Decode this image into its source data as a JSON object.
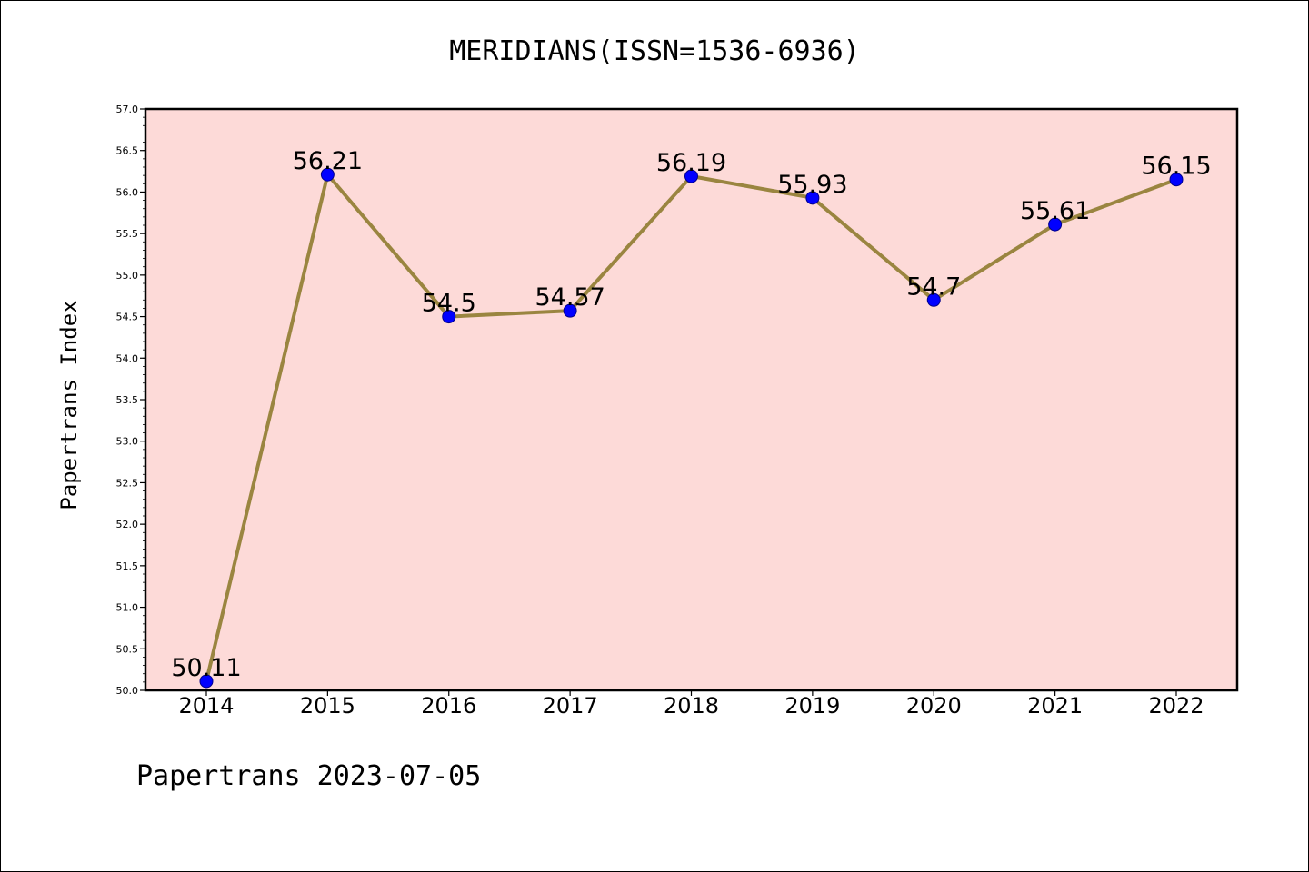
{
  "chart_data": {
    "type": "line",
    "title": "MERIDIANS(ISSN=1536-6936)",
    "ylabel": "Papertrans Index",
    "xlabel": "",
    "x": [
      "2014",
      "2015",
      "2016",
      "2017",
      "2018",
      "2019",
      "2020",
      "2021",
      "2022"
    ],
    "series": [
      {
        "values": [
          50.11,
          56.21,
          54.5,
          54.57,
          56.19,
          55.93,
          54.7,
          55.61,
          56.15
        ],
        "labels": [
          "50.11",
          "56.21",
          "54.5",
          "54.57",
          "56.19",
          "55.93",
          "54.7",
          "55.61",
          "56.15"
        ]
      }
    ],
    "ylim": [
      50.0,
      57.0
    ],
    "yticks": [
      "50.0",
      "50.5",
      "51.0",
      "51.5",
      "52.0",
      "52.5",
      "53.0",
      "53.5",
      "54.0",
      "54.5",
      "55.0",
      "55.5",
      "56.0",
      "56.5",
      "57.0"
    ],
    "grid": false,
    "colors": {
      "plot_background": "#fddad8",
      "line": "#9a8540",
      "marker": "#0000ff"
    }
  },
  "footer": "Papertrans 2023-07-05"
}
